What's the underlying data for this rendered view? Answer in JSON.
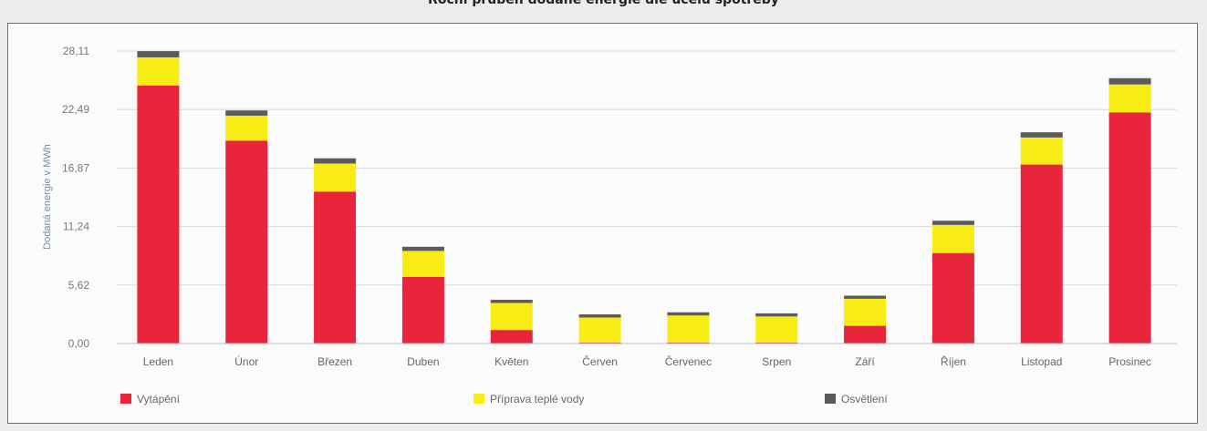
{
  "title": "Roční průběh dodané energie dle účelu spotřeby",
  "chart_data": {
    "type": "bar",
    "stacked": true,
    "title": "Roční průběh dodané energie dle účelu spotřeby",
    "ylabel": "Dodaná energie v MWh",
    "xlabel": "",
    "ylim": [
      0,
      28.11
    ],
    "yticks": [
      "0,00",
      "5,62",
      "11,24",
      "16,87",
      "22,49",
      "28,11"
    ],
    "grid": true,
    "legend_position": "bottom",
    "categories": [
      "Leden",
      "Únor",
      "Březen",
      "Duben",
      "Květen",
      "Červen",
      "Červenec",
      "Srpen",
      "Září",
      "Říjen",
      "Listopad",
      "Prosinec"
    ],
    "series": [
      {
        "name": "Vytápění",
        "color": "#e8253b",
        "values": [
          24.8,
          19.5,
          14.6,
          6.4,
          1.3,
          0.1,
          0.1,
          0.1,
          1.7,
          8.7,
          17.2,
          22.2
        ]
      },
      {
        "name": "Příprava teplé vody",
        "color": "#f7ec13",
        "values": [
          2.7,
          2.4,
          2.7,
          2.5,
          2.6,
          2.4,
          2.6,
          2.5,
          2.6,
          2.7,
          2.6,
          2.7
        ]
      },
      {
        "name": "Osvětlení",
        "color": "#5b5b5b",
        "values": [
          0.6,
          0.5,
          0.5,
          0.4,
          0.3,
          0.3,
          0.3,
          0.3,
          0.3,
          0.4,
          0.5,
          0.6
        ]
      }
    ]
  }
}
